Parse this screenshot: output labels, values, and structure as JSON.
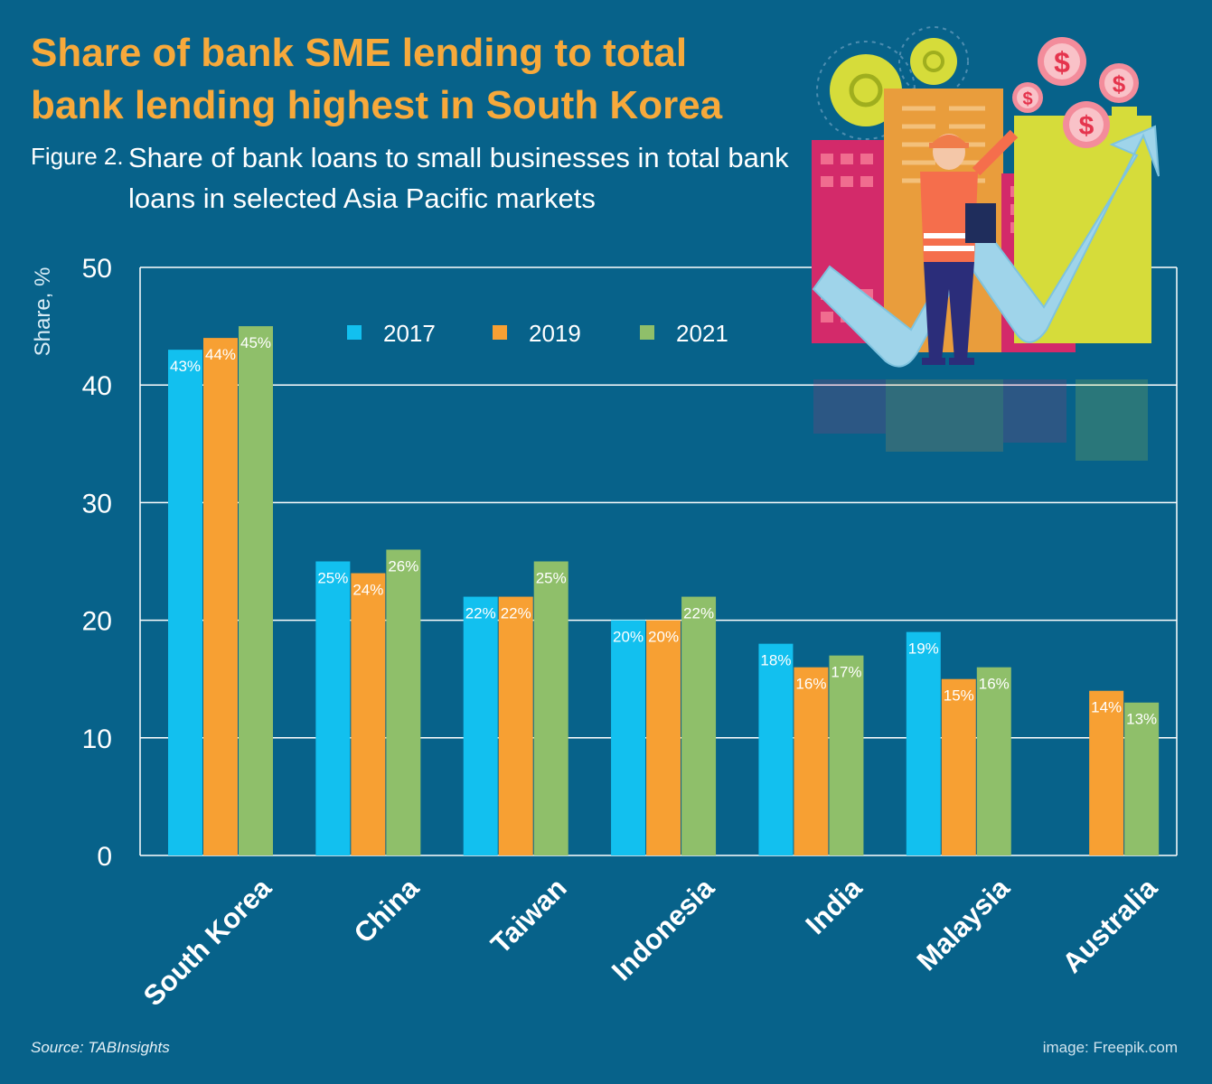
{
  "header": {
    "title": "Share of bank SME lending to total bank lending highest in South Korea",
    "figure_label": "Figure 2.",
    "subtitle": "Share of bank loans to small businesses in total bank loans in selected Asia Pacific markets"
  },
  "footer": {
    "source": "Source: TABInsights",
    "credit": "image: Freepik.com"
  },
  "colors": {
    "background": "#07628a",
    "title": "#f7a93b",
    "series_2017": "#12c0ef",
    "series_2019": "#f7a033",
    "series_2021": "#8fbf6a"
  },
  "chart_data": {
    "type": "bar",
    "ylabel": "Share, %",
    "xlabel": "",
    "ylim": [
      0,
      50
    ],
    "yticks": [
      0,
      10,
      20,
      30,
      40,
      50
    ],
    "grid": true,
    "legend_position": "top-center",
    "categories": [
      "South Korea",
      "China",
      "Taiwan",
      "Indonesia",
      "India",
      "Malaysia",
      "Australia"
    ],
    "series": [
      {
        "name": "2017",
        "color": "#12c0ef",
        "values": [
          43,
          25,
          22,
          20,
          18,
          19,
          null
        ],
        "labels": [
          "43%",
          "25%",
          "22%",
          "20%",
          "18%",
          "19%",
          null
        ]
      },
      {
        "name": "2019",
        "color": "#f7a033",
        "values": [
          44,
          24,
          22,
          20,
          16,
          15,
          14
        ],
        "labels": [
          "44%",
          "24%",
          "22%",
          "20%",
          "16%",
          "15%",
          "14%"
        ]
      },
      {
        "name": "2021",
        "color": "#8fbf6a",
        "values": [
          45,
          26,
          25,
          22,
          17,
          16,
          13
        ],
        "labels": [
          "45%",
          "26%",
          "25%",
          "22%",
          "17%",
          "16%",
          "13%"
        ]
      }
    ]
  },
  "illustration": {
    "icons": [
      "gear-icon",
      "dollar-coin-icon",
      "building-icon",
      "worker-icon",
      "growth-arrow-icon"
    ],
    "coin_symbol": "$"
  }
}
